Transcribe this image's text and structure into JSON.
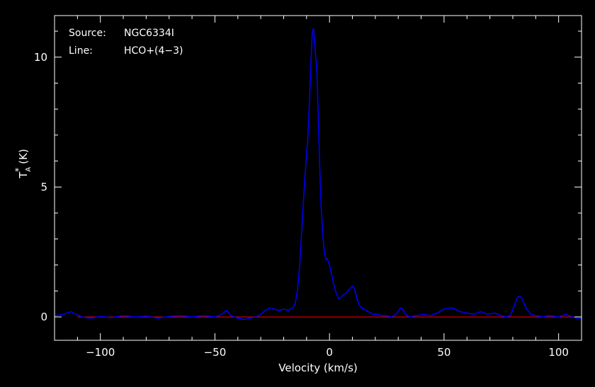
{
  "annotations": {
    "source_label": "Source:",
    "source_value": "NGC6334I",
    "line_label": "Line:",
    "line_value": "HCO+(4−3)"
  },
  "chart_data": {
    "type": "line",
    "xlabel": "Velocity (km/s)",
    "ylabel": {
      "base": "T",
      "sub": "A",
      "sup": "*",
      "unit": "(K)"
    },
    "xlim": [
      -120,
      110
    ],
    "ylim": [
      -0.9,
      11.6
    ],
    "grid": false,
    "x_ticks": [
      {
        "value": -100,
        "label": "−100"
      },
      {
        "value": -50,
        "label": "−50"
      },
      {
        "value": 0,
        "label": "0"
      },
      {
        "value": 50,
        "label": "50"
      },
      {
        "value": 100,
        "label": "100"
      }
    ],
    "y_ticks": [
      {
        "value": 0,
        "label": "0"
      },
      {
        "value": 5,
        "label": "5"
      },
      {
        "value": 10,
        "label": "10"
      }
    ],
    "colors": {
      "spectrum": "#0000ff",
      "baseline": "#ff0000",
      "axes": "#ffffff",
      "background": "#000000"
    },
    "baseline": {
      "value": 0,
      "x_range": [
        -110,
        110
      ]
    },
    "series": [
      {
        "x": [
          -120,
          -116,
          -113,
          -111,
          -108,
          -104,
          -100,
          -95,
          -90,
          -85,
          -80,
          -75,
          -70,
          -65,
          -60,
          -55,
          -50,
          -47,
          -45,
          -43,
          -40,
          -37,
          -35,
          -32,
          -30,
          -28,
          -26,
          -24,
          -22,
          -20,
          -18,
          -16,
          -15,
          -14,
          -13,
          -12,
          -11,
          -10,
          -9.5,
          -9,
          -8.5,
          -8,
          -7.5,
          -7,
          -6.5,
          -6,
          -5.5,
          -5,
          -4.5,
          -4,
          -3.5,
          -3,
          -2.5,
          -2,
          -1.5,
          -1,
          0,
          1,
          2,
          3,
          4,
          5,
          6,
          7,
          8,
          9,
          10,
          11,
          12,
          13,
          14,
          15,
          17,
          19,
          21,
          23,
          25,
          27,
          29,
          30,
          31,
          32,
          33,
          35,
          38,
          41,
          44,
          47,
          50,
          53,
          55,
          57,
          60,
          63,
          66,
          69,
          72,
          75,
          77,
          79,
          80,
          81,
          82,
          83,
          84,
          85,
          86,
          88,
          90,
          93,
          96,
          100,
          103,
          106,
          108,
          110
        ],
        "y": [
          0.05,
          0.1,
          0.2,
          0.12,
          0.0,
          -0.05,
          0.02,
          -0.03,
          0.05,
          0.0,
          0.03,
          -0.05,
          0.02,
          0.05,
          0.0,
          0.05,
          0.0,
          0.1,
          0.25,
          0.05,
          -0.05,
          -0.1,
          -0.05,
          0.0,
          0.1,
          0.25,
          0.35,
          0.3,
          0.25,
          0.3,
          0.25,
          0.35,
          0.5,
          1.0,
          2.0,
          3.5,
          5.0,
          6.3,
          6.8,
          7.7,
          8.9,
          10.0,
          11.0,
          11.1,
          10.6,
          10.0,
          9.5,
          8.0,
          6.5,
          5.0,
          4.0,
          3.3,
          2.7,
          2.4,
          2.2,
          2.25,
          2.0,
          1.6,
          1.2,
          0.9,
          0.7,
          0.75,
          0.85,
          0.9,
          1.0,
          1.1,
          1.2,
          1.05,
          0.7,
          0.45,
          0.35,
          0.3,
          0.2,
          0.1,
          0.1,
          0.05,
          0.05,
          0.0,
          0.1,
          0.2,
          0.35,
          0.3,
          0.1,
          0.0,
          0.05,
          0.1,
          0.05,
          0.15,
          0.3,
          0.35,
          0.3,
          0.2,
          0.15,
          0.1,
          0.2,
          0.1,
          0.15,
          0.05,
          0.0,
          0.05,
          0.3,
          0.5,
          0.75,
          0.8,
          0.7,
          0.5,
          0.3,
          0.1,
          0.05,
          0.0,
          0.05,
          0.0,
          0.1,
          0.0,
          -0.05,
          -0.05
        ]
      }
    ]
  }
}
